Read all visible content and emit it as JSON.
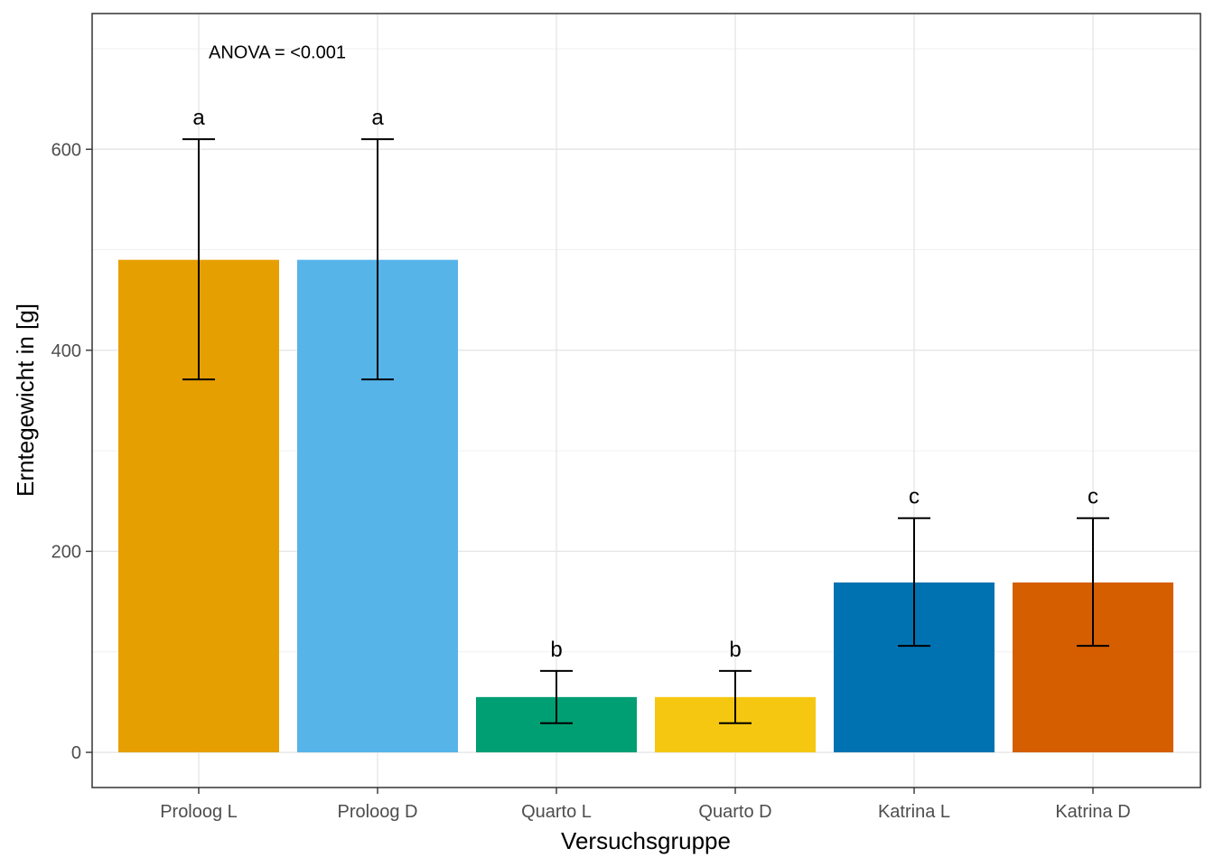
{
  "chart_data": {
    "type": "bar",
    "title": "",
    "xlabel": "Versuchsgruppe",
    "ylabel": "Erntegewicht in [g]",
    "ylim": [
      -35,
      735
    ],
    "yticks": [
      0,
      200,
      400,
      600
    ],
    "grid": true,
    "categories": [
      "Proloog L",
      "Proloog D",
      "Quarto L",
      "Quarto D",
      "Katrina L",
      "Katrina D"
    ],
    "values": [
      490,
      490,
      55,
      55,
      169,
      169
    ],
    "error_low": [
      371,
      371,
      29,
      29,
      106,
      106
    ],
    "error_high": [
      610,
      610,
      81,
      81,
      233,
      233
    ],
    "group_letters": [
      "a",
      "a",
      "b",
      "b",
      "c",
      "c"
    ],
    "colors": [
      "#E69F00",
      "#56B4E9",
      "#009E73",
      "#F5C710",
      "#0072B2",
      "#D55E00"
    ],
    "annotation": {
      "text": "ANOVA = <0.001",
      "x_category": "Proloog L",
      "y": 697
    }
  }
}
